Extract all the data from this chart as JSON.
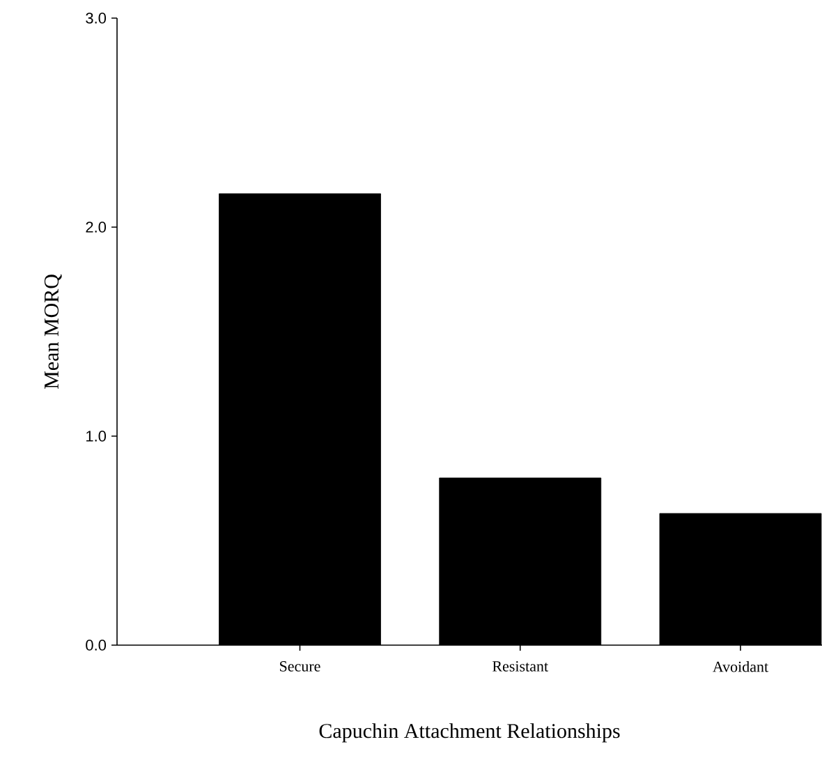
{
  "chart_data": {
    "type": "bar",
    "xlabel": "Capuchin Attachment Relationships",
    "ylabel": "Mean MORQ",
    "categories": [
      "Secure",
      "Resistant",
      "Avoidant"
    ],
    "values": [
      2.16,
      0.8,
      0.63
    ],
    "color": "#000000",
    "ylim": [
      0,
      3
    ],
    "yticks": [
      {
        "value": 0,
        "label": "0.0"
      },
      {
        "value": 1,
        "label": "1.0"
      },
      {
        "value": 2,
        "label": "2.0"
      },
      {
        "value": 3,
        "label": "3.0"
      }
    ],
    "grid": false
  }
}
